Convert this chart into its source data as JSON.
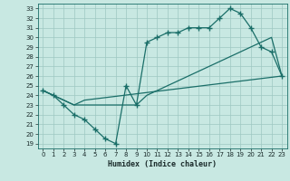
{
  "xlabel": "Humidex (Indice chaleur)",
  "xlim": [
    -0.5,
    23.5
  ],
  "ylim": [
    18.5,
    33.5
  ],
  "xticks": [
    0,
    1,
    2,
    3,
    4,
    5,
    6,
    7,
    8,
    9,
    10,
    11,
    12,
    13,
    14,
    15,
    16,
    17,
    18,
    19,
    20,
    21,
    22,
    23
  ],
  "yticks": [
    19,
    20,
    21,
    22,
    23,
    24,
    25,
    26,
    27,
    28,
    29,
    30,
    31,
    32,
    33
  ],
  "bg_color": "#c8e8e2",
  "grid_color": "#9ec8c2",
  "line_color": "#1a6e68",
  "line1_x": [
    0,
    1,
    2,
    3,
    4,
    5,
    6,
    7,
    8,
    9,
    10,
    11,
    12,
    13,
    14,
    15,
    16,
    17,
    18,
    19,
    20,
    21,
    22,
    23
  ],
  "line1_y": [
    24.5,
    24.0,
    23.0,
    22.0,
    21.5,
    20.5,
    19.5,
    19.0,
    25.0,
    23.0,
    29.5,
    30.0,
    30.5,
    30.5,
    31.0,
    31.0,
    31.0,
    32.0,
    33.0,
    32.5,
    31.0,
    29.0,
    28.5,
    26.0
  ],
  "line2_x": [
    0,
    1,
    3,
    4,
    23
  ],
  "line2_y": [
    24.5,
    24.0,
    23.0,
    23.5,
    26.0
  ],
  "line3_x": [
    0,
    3,
    7,
    8,
    9,
    10,
    11,
    12,
    13,
    14,
    15,
    16,
    17,
    18,
    19,
    20,
    21,
    22,
    23
  ],
  "line3_y": [
    24.5,
    23.0,
    23.0,
    23.0,
    23.0,
    24.0,
    24.5,
    25.0,
    25.5,
    26.0,
    26.5,
    27.0,
    27.5,
    28.0,
    28.5,
    29.0,
    29.5,
    30.0,
    26.0
  ]
}
